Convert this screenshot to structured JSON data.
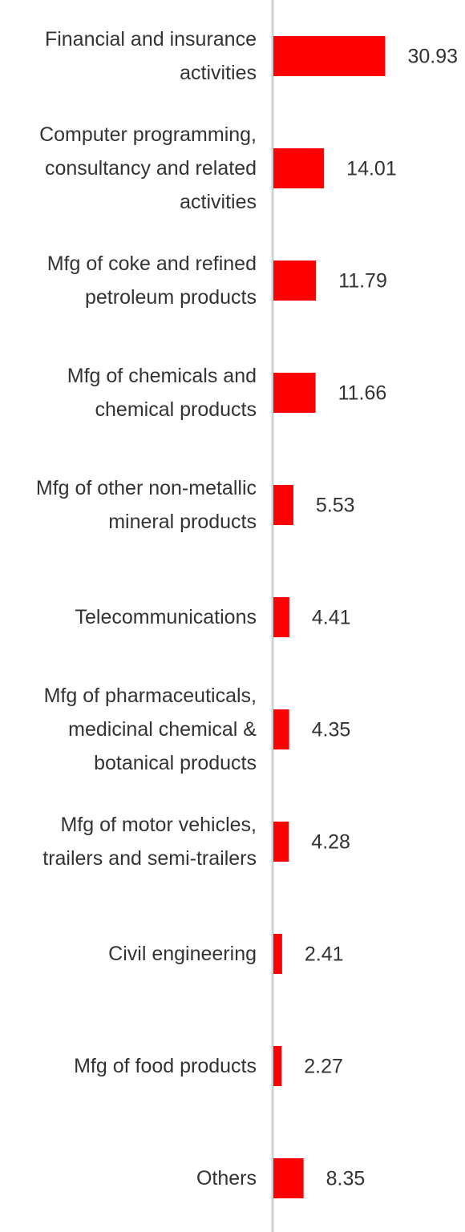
{
  "chart_data": {
    "type": "hbar",
    "categories": [
      "Financial and insurance activities",
      "Computer programming, consultancy and related activities",
      "Mfg of coke and refined petroleum products",
      "Mfg of chemicals and chemical products",
      "Mfg of other non-metallic mineral products",
      "Telecommunications",
      "Mfg of pharmaceuticals, medicinal chemical & botanical products",
      "Mfg of motor vehicles, trailers and semi-trailers",
      "Civil engineering",
      "Mfg of food products",
      "Others"
    ],
    "values": [
      30.93,
      14.01,
      11.79,
      11.66,
      5.53,
      4.41,
      4.35,
      4.28,
      2.41,
      2.27,
      8.35
    ],
    "color": "#ff0000",
    "xlim": [
      0,
      53
    ]
  }
}
